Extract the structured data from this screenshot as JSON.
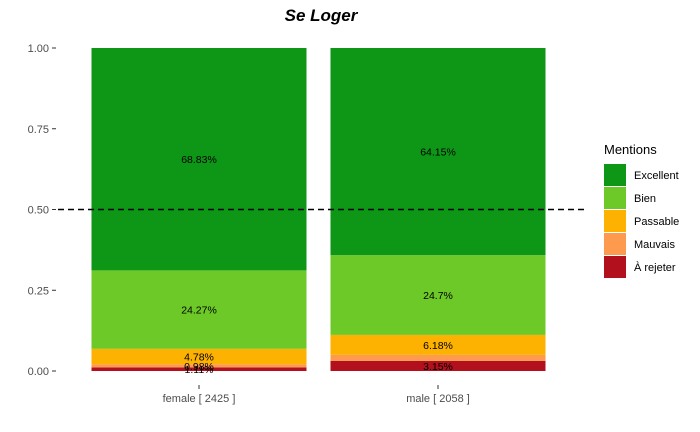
{
  "chart_data": {
    "type": "bar",
    "stacked": true,
    "normalized": true,
    "title": "Se Loger",
    "xlabel": "",
    "ylabel": "",
    "ylim": [
      0,
      1
    ],
    "yticks": [
      "0.00",
      "0.25",
      "0.50",
      "0.75",
      "1.00"
    ],
    "categories": [
      "female [ 2425 ]",
      "male [ 2058 ]"
    ],
    "reference_line": {
      "y": 0.5,
      "style": "dashed"
    },
    "grid": false,
    "legend_position": "right",
    "legend_title": "Mentions",
    "series": [
      {
        "name": "À rejeter",
        "color": "#b3101e",
        "values": [
          1.11,
          3.15
        ],
        "labels": [
          "1.11%",
          "3.15%"
        ]
      },
      {
        "name": "Mauvais",
        "color": "#fd9a4e",
        "values": [
          0.98,
          1.85
        ],
        "labels": [
          "0.98%",
          ""
        ]
      },
      {
        "name": "Passable",
        "color": "#fdb100",
        "values": [
          4.78,
          6.18
        ],
        "labels": [
          "4.78%",
          "6.18%"
        ]
      },
      {
        "name": "Bien",
        "color": "#6dc927",
        "values": [
          24.27,
          24.7
        ],
        "labels": [
          "24.27%",
          "24.7%"
        ]
      },
      {
        "name": "Excellent",
        "color": "#0e9617",
        "values": [
          68.83,
          64.15
        ],
        "labels": [
          "68.83%",
          "64.15%"
        ]
      }
    ],
    "legend_order": [
      "Excellent",
      "Bien",
      "Passable",
      "Mauvais",
      "À rejeter"
    ]
  }
}
